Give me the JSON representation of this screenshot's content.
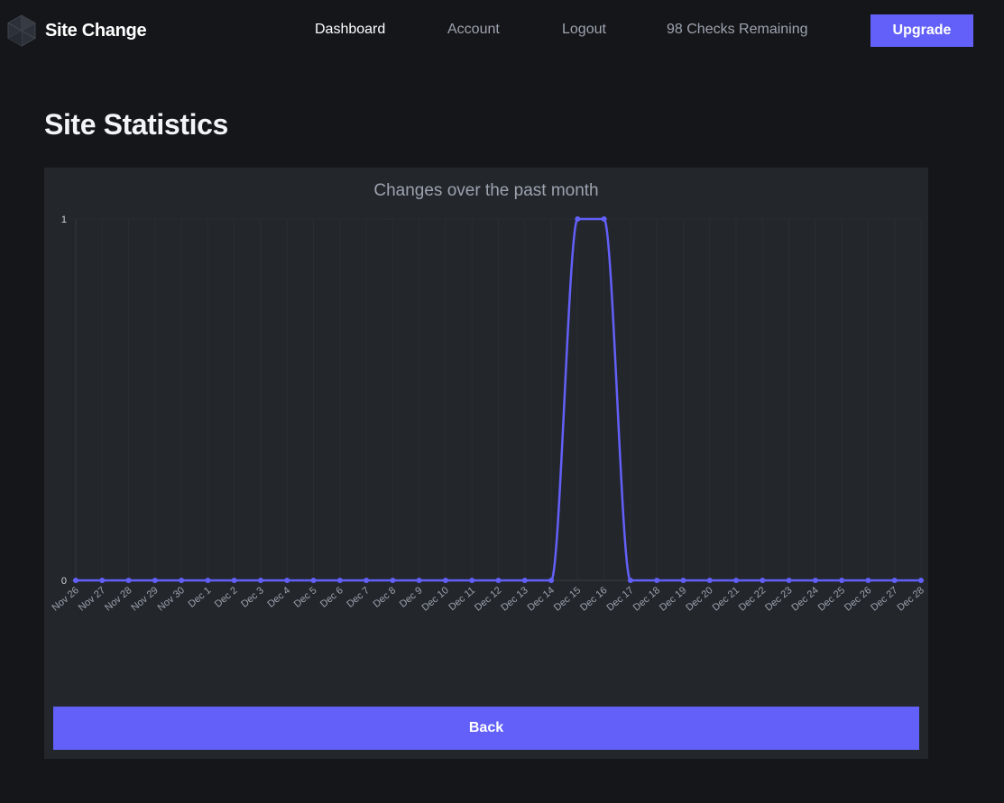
{
  "brand": {
    "name": "Site Change",
    "logo_icon": "hexagon-logo-icon"
  },
  "nav": {
    "links": [
      {
        "label": "Dashboard",
        "active": true
      },
      {
        "label": "Account",
        "active": false
      },
      {
        "label": "Logout",
        "active": false
      }
    ],
    "checks_remaining": "98 Checks Remaining",
    "upgrade_label": "Upgrade"
  },
  "page": {
    "title": "Site Statistics"
  },
  "colors": {
    "background": "#151619",
    "card": "#23262b",
    "accent": "#6360f9",
    "line": "#6360f9"
  },
  "chart_data": {
    "type": "line",
    "title": "Changes over the past month",
    "xlabel": "",
    "ylabel": "",
    "ylim": [
      0,
      1
    ],
    "yticks": [
      0,
      1
    ],
    "grid": true,
    "categories": [
      "Nov 26",
      "Nov 27",
      "Nov 28",
      "Nov 29",
      "Nov 30",
      "Dec 1",
      "Dec 2",
      "Dec 3",
      "Dec 4",
      "Dec 5",
      "Dec 6",
      "Dec 7",
      "Dec 8",
      "Dec 9",
      "Dec 10",
      "Dec 11",
      "Dec 12",
      "Dec 13",
      "Dec 14",
      "Dec 15",
      "Dec 16",
      "Dec 17",
      "Dec 18",
      "Dec 19",
      "Dec 20",
      "Dec 21",
      "Dec 22",
      "Dec 23",
      "Dec 24",
      "Dec 25",
      "Dec 26",
      "Dec 27",
      "Dec 28"
    ],
    "series": [
      {
        "values": [
          0,
          0,
          0,
          0,
          0,
          0,
          0,
          0,
          0,
          0,
          0,
          0,
          0,
          0,
          0,
          0,
          0,
          0,
          0,
          1,
          1,
          0,
          0,
          0,
          0,
          0,
          0,
          0,
          0,
          0,
          0,
          0,
          0
        ]
      }
    ]
  },
  "actions": {
    "back_label": "Back"
  }
}
